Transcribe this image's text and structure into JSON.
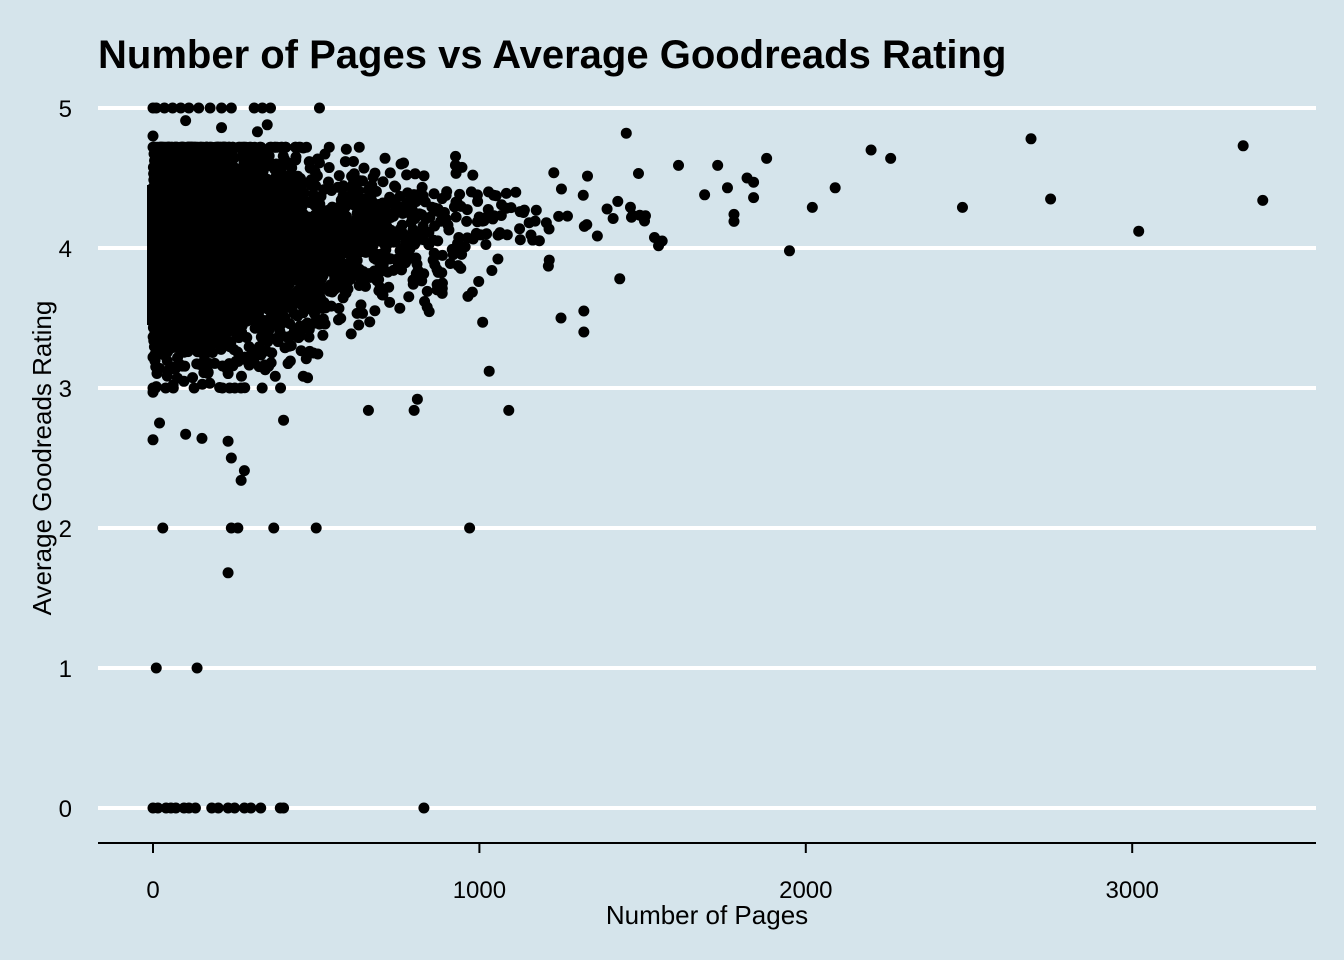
{
  "chart_data": {
    "type": "scatter",
    "title": "Number of Pages vs Average Goodreads Rating",
    "xlabel": "Number of Pages",
    "ylabel": "Average Goodreads Rating",
    "xlim": [
      -170,
      3570
    ],
    "ylim": [
      -0.25,
      5.1
    ],
    "x_ticks": [
      0,
      1000,
      2000,
      3000
    ],
    "x_tick_labels": [
      "0",
      "1000",
      "2000",
      "3000"
    ],
    "y_ticks": [
      0,
      1,
      2,
      3,
      4,
      5
    ],
    "y_tick_labels": [
      "0",
      "1",
      "2",
      "3",
      "4",
      "5"
    ],
    "grid": "horizontal",
    "colors": {
      "background": "#d5e4eb",
      "gridline": "#ffffff",
      "point": "#000000",
      "axis": "#000000"
    },
    "dense_cluster": {
      "note": "thousands of overlapping points",
      "x_range": [
        0,
        1550
      ],
      "y_center": 4.0,
      "y_spread": 0.35
    },
    "series": [
      {
        "values": [
          [
            0,
            5.0
          ],
          [
            10,
            5.0
          ],
          [
            35,
            5.0
          ],
          [
            60,
            5.0
          ],
          [
            85,
            5.0
          ],
          [
            110,
            5.0
          ],
          [
            140,
            5.0
          ],
          [
            175,
            5.0
          ],
          [
            210,
            5.0
          ],
          [
            240,
            5.0
          ],
          [
            310,
            5.0
          ],
          [
            335,
            5.0
          ],
          [
            360,
            5.0
          ],
          [
            510,
            5.0
          ],
          [
            0,
            4.8
          ],
          [
            100,
            4.91
          ],
          [
            210,
            4.86
          ],
          [
            320,
            4.83
          ],
          [
            350,
            4.88
          ],
          [
            540,
            4.72
          ],
          [
            760,
            4.6
          ],
          [
            1450,
            4.82
          ],
          [
            1610,
            4.59
          ],
          [
            1730,
            4.59
          ],
          [
            1880,
            4.64
          ],
          [
            2200,
            4.7
          ],
          [
            2260,
            4.64
          ],
          [
            2690,
            4.78
          ],
          [
            3340,
            4.73
          ],
          [
            1690,
            4.38
          ],
          [
            1760,
            4.43
          ],
          [
            1820,
            4.5
          ],
          [
            1840,
            4.47
          ],
          [
            1780,
            4.24
          ],
          [
            1780,
            4.19
          ],
          [
            1840,
            4.36
          ],
          [
            2090,
            4.43
          ],
          [
            2020,
            4.29
          ],
          [
            2480,
            4.29
          ],
          [
            2750,
            4.35
          ],
          [
            3400,
            4.34
          ],
          [
            3020,
            4.12
          ],
          [
            1950,
            3.98
          ],
          [
            1430,
            3.78
          ],
          [
            1560,
            4.05
          ],
          [
            1320,
            3.55
          ],
          [
            1320,
            3.4
          ],
          [
            1250,
            3.5
          ],
          [
            1010,
            3.47
          ],
          [
            1030,
            3.12
          ],
          [
            1090,
            2.84
          ],
          [
            800,
            2.84
          ],
          [
            810,
            2.92
          ],
          [
            660,
            2.84
          ],
          [
            400,
            2.77
          ],
          [
            280,
            2.41
          ],
          [
            270,
            2.34
          ],
          [
            240,
            2.5
          ],
          [
            230,
            2.62
          ],
          [
            150,
            2.64
          ],
          [
            100,
            2.67
          ],
          [
            0,
            2.63
          ],
          [
            20,
            2.75
          ],
          [
            0,
            2.97
          ],
          [
            0,
            3.0
          ],
          [
            0,
            3.22
          ],
          [
            30,
            2.0
          ],
          [
            240,
            2.0
          ],
          [
            260,
            2.0
          ],
          [
            370,
            2.0
          ],
          [
            500,
            2.0
          ],
          [
            970,
            2.0
          ],
          [
            230,
            1.68
          ],
          [
            10,
            1.0
          ],
          [
            135,
            1.0
          ],
          [
            0,
            0.0
          ],
          [
            15,
            0.0
          ],
          [
            40,
            0.0
          ],
          [
            55,
            0.0
          ],
          [
            70,
            0.0
          ],
          [
            95,
            0.0
          ],
          [
            110,
            0.0
          ],
          [
            130,
            0.0
          ],
          [
            180,
            0.0
          ],
          [
            200,
            0.0
          ],
          [
            230,
            0.0
          ],
          [
            250,
            0.0
          ],
          [
            280,
            0.0
          ],
          [
            300,
            0.0
          ],
          [
            330,
            0.0
          ],
          [
            390,
            0.0
          ],
          [
            400,
            0.0
          ],
          [
            830,
            0.0
          ]
        ]
      }
    ]
  }
}
